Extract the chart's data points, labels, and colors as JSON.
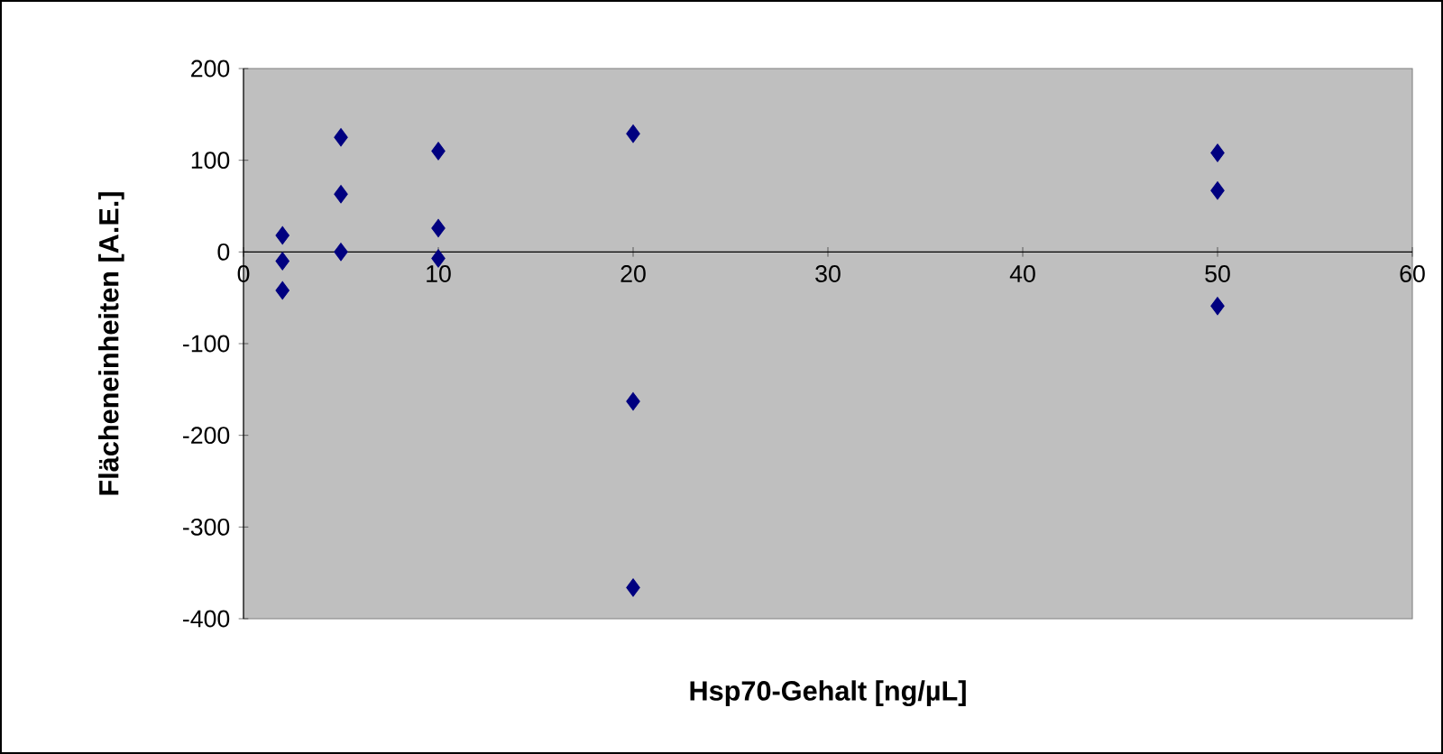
{
  "chart_data": {
    "type": "scatter",
    "xlabel": "Hsp70-Gehalt [ng/µL]",
    "ylabel": "Flächeneinheiten [A.E.]",
    "series": [
      {
        "color": "#000080",
        "x": [
          2,
          2,
          2,
          5,
          5,
          5,
          10,
          10,
          10,
          20,
          20,
          20,
          50,
          50,
          50
        ],
        "values": [
          18,
          -10,
          -42,
          125,
          63,
          0,
          110,
          26,
          -7,
          129,
          -163,
          -366,
          108,
          67,
          -59
        ]
      }
    ],
    "xlim": [
      0,
      60
    ],
    "ylim": [
      -400,
      200
    ],
    "xticks": [
      0,
      10,
      20,
      30,
      40,
      50,
      60
    ],
    "yticks": [
      -400,
      -300,
      -200,
      -100,
      0,
      100,
      200
    ],
    "marker": "diamond",
    "grid": false
  }
}
